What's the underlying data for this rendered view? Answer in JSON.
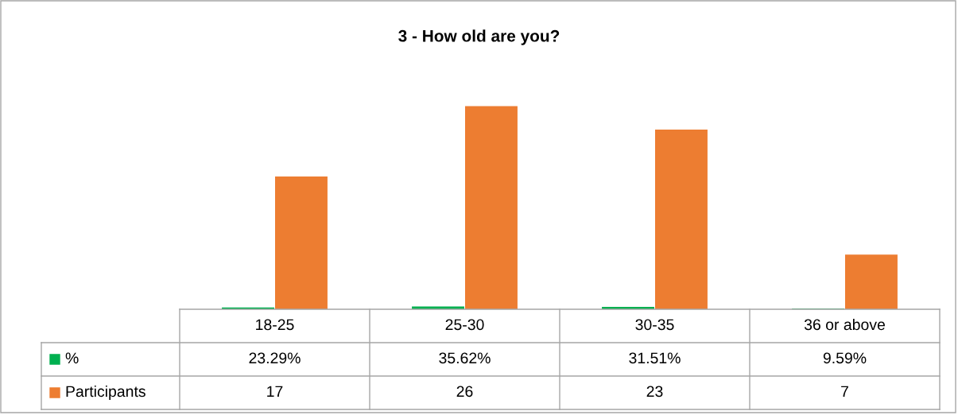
{
  "chart_data": {
    "type": "bar",
    "title": "3 - How old are you?",
    "categories": [
      "18-25",
      "25-30",
      "30-35",
      "36 or above"
    ],
    "series": [
      {
        "name": "%",
        "color": "#00b050",
        "values": [
          0.2329,
          0.3562,
          0.3151,
          0.0959
        ],
        "value_labels": [
          "23.29%",
          "35.62%",
          "31.51%",
          "9.59%"
        ]
      },
      {
        "name": "Participants",
        "color": "#ed7d31",
        "values": [
          17,
          26,
          23,
          7
        ],
        "value_labels": [
          "17",
          "26",
          "23",
          "7"
        ]
      }
    ],
    "legend": "bottom left"
  }
}
